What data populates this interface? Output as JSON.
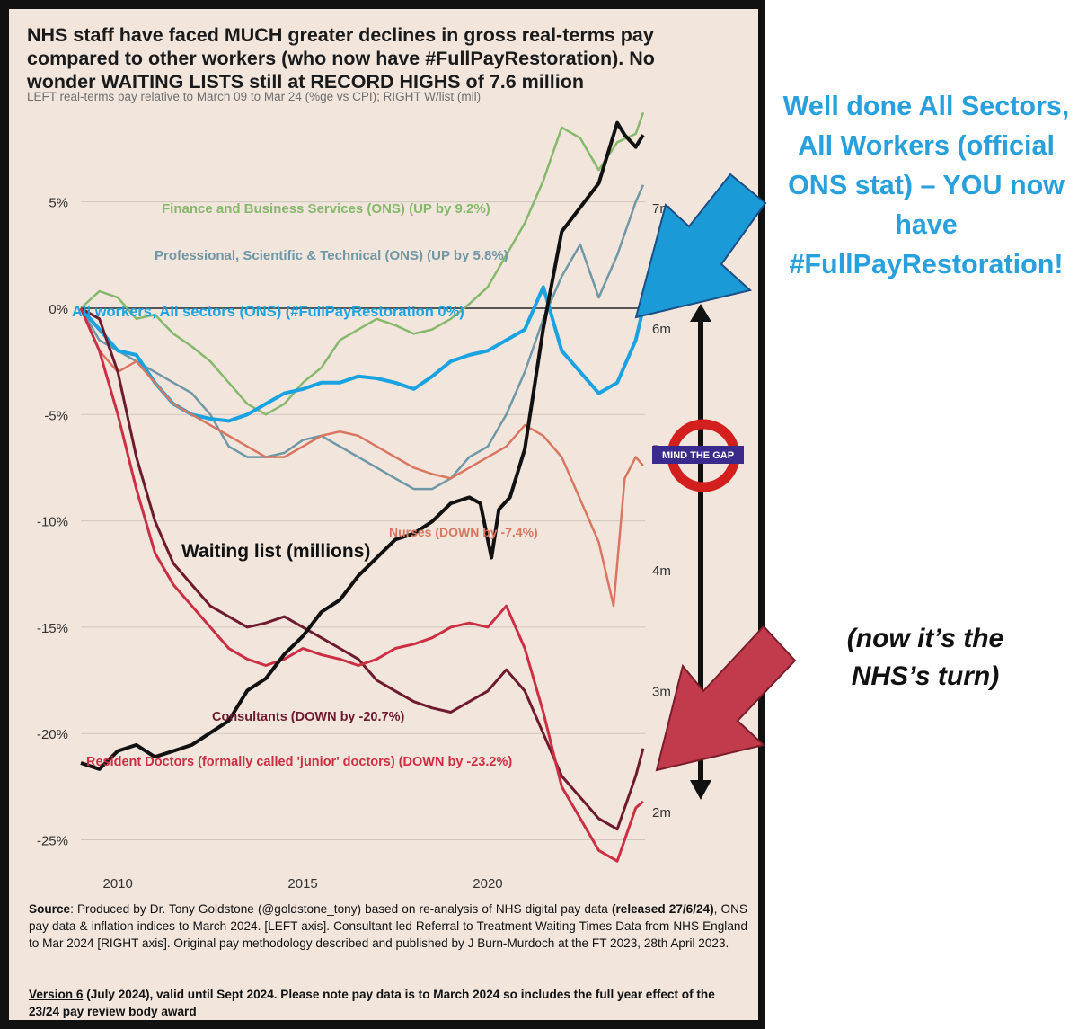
{
  "title": "NHS staff have faced MUCH greater declines in gross real-terms pay compared to other workers (who now have #FullPayRestoration). No wonder WAITING LISTS still at RECORD HIGHS of 7.6 million",
  "subtitle": "LEFT real-terms pay relative to March 09 to Mar 24 (%ge vs CPI); RIGHT W/list (mil)",
  "annotation_right": "Well done All Sectors, All Workers (official ONS stat) – YOU now have #FullPayRestoration!",
  "annotation_nhs": "(now it’s the NHS’s turn)",
  "badge": "MIND THE GAP",
  "source": {
    "p1_label": "Source",
    "p1_text": ": Produced by Dr. Tony Goldstone (@goldstone_tony) based on re-analysis of NHS digital pay data ",
    "p1_bold": "(released 27/6/24)",
    "p1_rest": ", ONS pay data & inflation indices to March 2024. [LEFT axis]. Consultant-led Referral to Treatment Waiting Times Data from NHS England to Mar 2024 [RIGHT axis]. Original pay methodology described and published by J Burn-Murdoch at the FT 2023, 28th April 2023.",
    "version_label": "Version 6",
    "version_text": " (July 2024), valid until Sept 2024. Please note pay data is to March 2024 so includes the full year effect of the 23/24 pay review body award"
  },
  "colors": {
    "finance": "#86b86b",
    "professional": "#6f97a6",
    "all_workers": "#1aa3e0",
    "nurses": "#d9765f",
    "consultants": "#6e1a2f",
    "resident": "#cc2e44",
    "waiting": "#111111",
    "arrow_blue": "#1a9ad6",
    "arrow_red": "#c23b4c",
    "headline": "#28a0dc"
  },
  "chart_data": {
    "type": "line",
    "title": "NHS staff have faced MUCH greater declines in gross real-terms pay compared to other workers (who now have #FullPayRestoration). No wonder WAITING LISTS still at RECORD HIGHS of 7.6 million",
    "subtitle": "LEFT real-terms pay relative to March 09 to Mar 24 (%ge vs CPI); RIGHT W/list (mil)",
    "x_ticks": [
      "2010",
      "2015",
      "2020"
    ],
    "xlim": [
      2009.0,
      2024.25
    ],
    "y_left_ticks": [
      "5%",
      "0%",
      "-5%",
      "-10%",
      "-15%",
      "-20%",
      "-25%"
    ],
    "y_left_values": [
      5,
      0,
      -5,
      -10,
      -15,
      -20,
      -25
    ],
    "ylim_left": [
      -26.5,
      9
    ],
    "y_right_ticks": [
      "7m",
      "6m",
      "5m",
      "4m",
      "3m",
      "2m"
    ],
    "y_right_values": [
      7,
      6,
      5,
      4,
      3,
      2
    ],
    "ylim_right": [
      1.5,
      7.75
    ],
    "grid": true,
    "series": [
      {
        "name": "Finance and Business Services (ONS) (UP by 9.2%)",
        "key": "finance",
        "axis": "left",
        "label": "Finance and Business Services (ONS) (UP by 9.2%)",
        "x": [
          2009.0,
          2009.5,
          2010.0,
          2010.5,
          2011.0,
          2011.5,
          2012.0,
          2012.5,
          2013.0,
          2013.5,
          2014.0,
          2014.5,
          2015.0,
          2015.5,
          2016.0,
          2016.5,
          2017.0,
          2017.5,
          2018.0,
          2018.5,
          2019.0,
          2019.5,
          2020.0,
          2020.5,
          2021.0,
          2021.5,
          2022.0,
          2022.5,
          2023.0,
          2023.5,
          2024.0,
          2024.2
        ],
        "y": [
          0,
          0.8,
          0.5,
          -0.5,
          -0.3,
          -1.2,
          -1.8,
          -2.5,
          -3.5,
          -4.5,
          -5.0,
          -4.5,
          -3.5,
          -2.8,
          -1.5,
          -1.0,
          -0.5,
          -0.8,
          -1.2,
          -1.0,
          -0.5,
          0.2,
          1.0,
          2.5,
          4.0,
          6.0,
          8.5,
          8.0,
          6.5,
          7.8,
          8.2,
          9.2
        ]
      },
      {
        "name": "Professional, Scientific & Technical (ONS) (UP by 5.8%)",
        "key": "professional",
        "axis": "left",
        "label": "Professional, Scientific & Technical (ONS) (UP by 5.8%)",
        "x": [
          2009.0,
          2009.5,
          2010.0,
          2010.5,
          2011.0,
          2011.5,
          2012.0,
          2012.5,
          2013.0,
          2013.5,
          2014.0,
          2014.5,
          2015.0,
          2015.5,
          2016.0,
          2016.5,
          2017.0,
          2017.5,
          2018.0,
          2018.5,
          2019.0,
          2019.5,
          2020.0,
          2020.5,
          2021.0,
          2021.5,
          2022.0,
          2022.5,
          2023.0,
          2023.5,
          2024.0,
          2024.2
        ],
        "y": [
          0,
          -1.5,
          -2.0,
          -2.5,
          -3.0,
          -3.5,
          -4.0,
          -5.0,
          -6.5,
          -7.0,
          -7.0,
          -6.8,
          -6.2,
          -6.0,
          -6.5,
          -7.0,
          -7.5,
          -8.0,
          -8.5,
          -8.5,
          -8.0,
          -7.0,
          -6.5,
          -5.0,
          -3.0,
          -0.5,
          1.5,
          3.0,
          0.5,
          2.5,
          5.0,
          5.8
        ]
      },
      {
        "name": "All workers, All sectors (ONS) (#FullPayRestoration 0%)",
        "key": "all_workers",
        "axis": "left",
        "label": "All workers, All sectors (ONS) (#FullPayRestoration 0%)",
        "x": [
          2009.0,
          2009.5,
          2010.0,
          2010.5,
          2011.0,
          2011.5,
          2012.0,
          2012.5,
          2013.0,
          2013.5,
          2014.0,
          2014.5,
          2015.0,
          2015.5,
          2016.0,
          2016.5,
          2017.0,
          2017.5,
          2018.0,
          2018.5,
          2019.0,
          2019.5,
          2020.0,
          2020.5,
          2021.0,
          2021.5,
          2022.0,
          2022.5,
          2023.0,
          2023.5,
          2024.0,
          2024.2
        ],
        "y": [
          0,
          -1.0,
          -2.0,
          -2.2,
          -3.5,
          -4.5,
          -5.0,
          -5.2,
          -5.3,
          -5.0,
          -4.5,
          -4.0,
          -3.8,
          -3.5,
          -3.5,
          -3.2,
          -3.3,
          -3.5,
          -3.8,
          -3.2,
          -2.5,
          -2.2,
          -2.0,
          -1.5,
          -1.0,
          1.0,
          -2.0,
          -3.0,
          -4.0,
          -3.5,
          -1.5,
          0
        ]
      },
      {
        "name": "Nurses (DOWN by -7.4%)",
        "key": "nurses",
        "axis": "left",
        "label": "Nurses (DOWN by -7.4%)",
        "x": [
          2009.0,
          2009.5,
          2010.0,
          2010.5,
          2011.0,
          2011.5,
          2012.0,
          2012.5,
          2013.0,
          2013.5,
          2014.0,
          2014.5,
          2015.0,
          2015.5,
          2016.0,
          2016.5,
          2017.0,
          2017.5,
          2018.0,
          2018.5,
          2019.0,
          2019.5,
          2020.0,
          2020.5,
          2021.0,
          2021.5,
          2022.0,
          2022.5,
          2023.0,
          2023.4,
          2023.7,
          2024.0,
          2024.2
        ],
        "y": [
          0,
          -2.0,
          -3.0,
          -2.5,
          -3.5,
          -4.5,
          -5.0,
          -5.5,
          -6.0,
          -6.5,
          -7.0,
          -7.0,
          -6.5,
          -6.0,
          -5.8,
          -6.0,
          -6.5,
          -7.0,
          -7.5,
          -7.8,
          -8.0,
          -7.5,
          -7.0,
          -6.5,
          -5.5,
          -6.0,
          -7.0,
          -9.0,
          -11.0,
          -14.0,
          -8.0,
          -7.0,
          -7.4
        ]
      },
      {
        "name": "Consultants (DOWN by -20.7%)",
        "key": "consultants",
        "axis": "left",
        "label": "Consultants (DOWN by -20.7%)",
        "x": [
          2009.0,
          2009.5,
          2010.0,
          2010.5,
          2011.0,
          2011.5,
          2012.0,
          2012.5,
          2013.0,
          2013.5,
          2014.0,
          2014.5,
          2015.0,
          2015.5,
          2016.0,
          2016.5,
          2017.0,
          2017.5,
          2018.0,
          2018.5,
          2019.0,
          2019.5,
          2020.0,
          2020.5,
          2021.0,
          2021.5,
          2022.0,
          2022.5,
          2023.0,
          2023.5,
          2024.0,
          2024.2
        ],
        "y": [
          0,
          -0.5,
          -3.0,
          -7.0,
          -10.0,
          -12.0,
          -13.0,
          -14.0,
          -14.5,
          -15.0,
          -14.8,
          -14.5,
          -15.0,
          -15.5,
          -16.0,
          -16.5,
          -17.5,
          -18.0,
          -18.5,
          -18.8,
          -19.0,
          -18.5,
          -18.0,
          -17.0,
          -18.0,
          -20.0,
          -22.0,
          -23.0,
          -24.0,
          -24.5,
          -22.0,
          -20.7
        ]
      },
      {
        "name": "Resident Doctors (formally called 'junior' doctors) (DOWN by -23.2%)",
        "key": "resident",
        "axis": "left",
        "label": "Resident Doctors (formally called 'junior' doctors) (DOWN by -23.2%)",
        "x": [
          2009.0,
          2009.5,
          2010.0,
          2010.5,
          2011.0,
          2011.5,
          2012.0,
          2012.5,
          2013.0,
          2013.5,
          2014.0,
          2014.5,
          2015.0,
          2015.5,
          2016.0,
          2016.5,
          2017.0,
          2017.5,
          2018.0,
          2018.5,
          2019.0,
          2019.5,
          2020.0,
          2020.5,
          2021.0,
          2021.5,
          2022.0,
          2022.5,
          2023.0,
          2023.5,
          2024.0,
          2024.2
        ],
        "y": [
          0,
          -2.0,
          -5.0,
          -8.5,
          -11.5,
          -13.0,
          -14.0,
          -15.0,
          -16.0,
          -16.5,
          -16.8,
          -16.5,
          -16.0,
          -16.3,
          -16.5,
          -16.8,
          -16.5,
          -16.0,
          -15.8,
          -15.5,
          -15.0,
          -14.8,
          -15.0,
          -14.0,
          -16.0,
          -19.0,
          -22.5,
          -24.0,
          -25.5,
          -26.0,
          -23.5,
          -23.2
        ]
      },
      {
        "name": "Waiting list (millions)",
        "key": "waiting",
        "axis": "right",
        "label": "Waiting list (millions)",
        "x": [
          2009.0,
          2009.5,
          2010.0,
          2010.5,
          2011.0,
          2011.5,
          2012.0,
          2012.5,
          2013.0,
          2013.5,
          2014.0,
          2014.5,
          2015.0,
          2015.5,
          2016.0,
          2016.5,
          2017.0,
          2017.5,
          2018.0,
          2018.5,
          2019.0,
          2019.5,
          2019.8,
          2020.1,
          2020.3,
          2020.6,
          2021.0,
          2021.5,
          2022.0,
          2022.5,
          2023.0,
          2023.5,
          2023.7,
          2024.0,
          2024.2
        ],
        "y": [
          2.4,
          2.35,
          2.5,
          2.55,
          2.45,
          2.5,
          2.55,
          2.65,
          2.75,
          3.0,
          3.1,
          3.3,
          3.45,
          3.65,
          3.75,
          3.95,
          4.1,
          4.25,
          4.3,
          4.4,
          4.55,
          4.6,
          4.55,
          4.1,
          4.5,
          4.6,
          5.0,
          6.0,
          6.8,
          7.0,
          7.2,
          7.7,
          7.6,
          7.5,
          7.6
        ]
      }
    ]
  }
}
